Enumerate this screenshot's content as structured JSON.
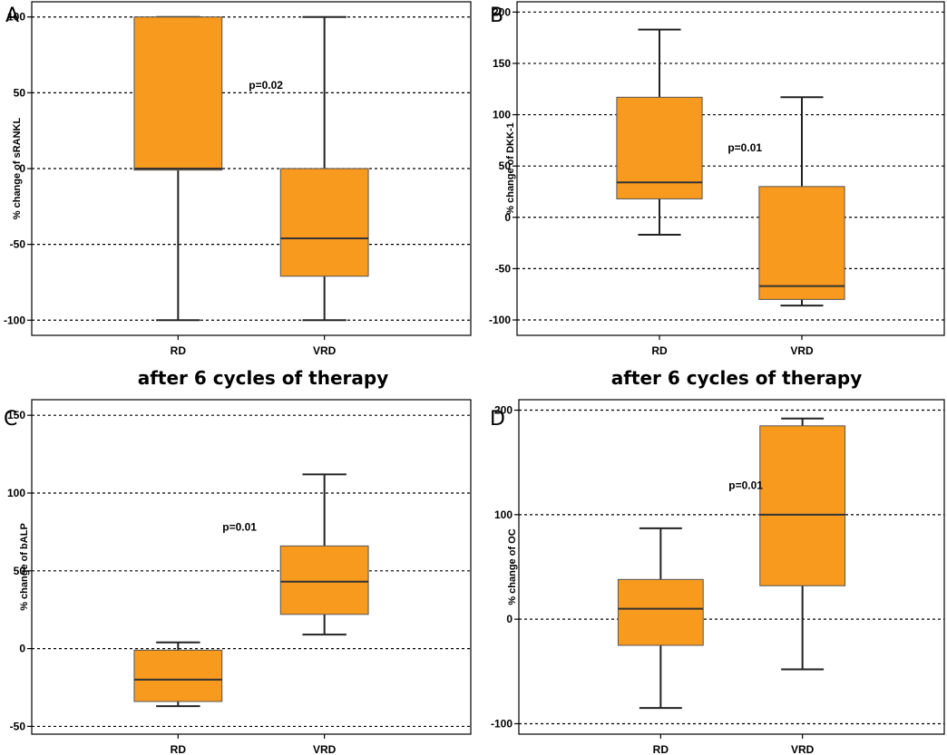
{
  "captions": [
    "after 6 cycles of therapy",
    "after 6 cycles of therapy"
  ],
  "box_color": "#F79A1E",
  "chart_data": [
    {
      "type": "box",
      "panel": "A",
      "ylabel": "% change of sRANKL",
      "ylim": [
        -110,
        110
      ],
      "yticks": [
        100,
        50,
        0,
        -50,
        -100
      ],
      "categories": [
        "RD",
        "VRD"
      ],
      "boxes": [
        {
          "min": -100,
          "q1": -1,
          "median": 0,
          "q3": 100,
          "max": 100
        },
        {
          "min": -100,
          "q1": -71,
          "median": -46,
          "q3": 0,
          "max": 100
        }
      ],
      "annotation": {
        "text": "p=0.02",
        "x": 1.6,
        "y": 55
      },
      "grid": true
    },
    {
      "type": "box",
      "panel": "B",
      "ylabel": "% change of DKK-1",
      "ylim": [
        -115,
        210
      ],
      "yticks": [
        200,
        150,
        100,
        50,
        0,
        -50,
        -100
      ],
      "categories": [
        "RD",
        "VRD"
      ],
      "boxes": [
        {
          "min": -17,
          "q1": 18,
          "median": 34,
          "q3": 117,
          "max": 183
        },
        {
          "min": -86,
          "q1": -80,
          "median": -67,
          "q3": 30,
          "max": 117
        }
      ],
      "annotation": {
        "text": "p=0.01",
        "x": 1.6,
        "y": 68
      },
      "grid": true
    },
    {
      "type": "box",
      "panel": "C",
      "ylabel": "% change of bALP",
      "ylim": [
        -55,
        160
      ],
      "yticks": [
        150,
        100,
        50,
        0,
        -50
      ],
      "categories": [
        "RD",
        "VRD"
      ],
      "boxes": [
        {
          "min": -37,
          "q1": -34,
          "median": -20,
          "q3": -1,
          "max": 4
        },
        {
          "min": 9,
          "q1": 22,
          "median": 43,
          "q3": 66,
          "max": 112
        }
      ],
      "annotation": {
        "text": "p=0.01",
        "x": 1.42,
        "y": 78
      },
      "grid": true
    },
    {
      "type": "box",
      "panel": "D",
      "ylabel": "% change of OC",
      "ylim": [
        -110,
        210
      ],
      "yticks": [
        200,
        100,
        0,
        -100
      ],
      "categories": [
        "RD",
        "VRD"
      ],
      "boxes": [
        {
          "min": -85,
          "q1": -25,
          "median": 10,
          "q3": 38,
          "max": 87
        },
        {
          "min": -48,
          "q1": 32,
          "median": 100,
          "q3": 185,
          "max": 192
        }
      ],
      "annotation": {
        "text": "p=0.01",
        "x": 1.6,
        "y": 128
      },
      "grid": true
    }
  ]
}
